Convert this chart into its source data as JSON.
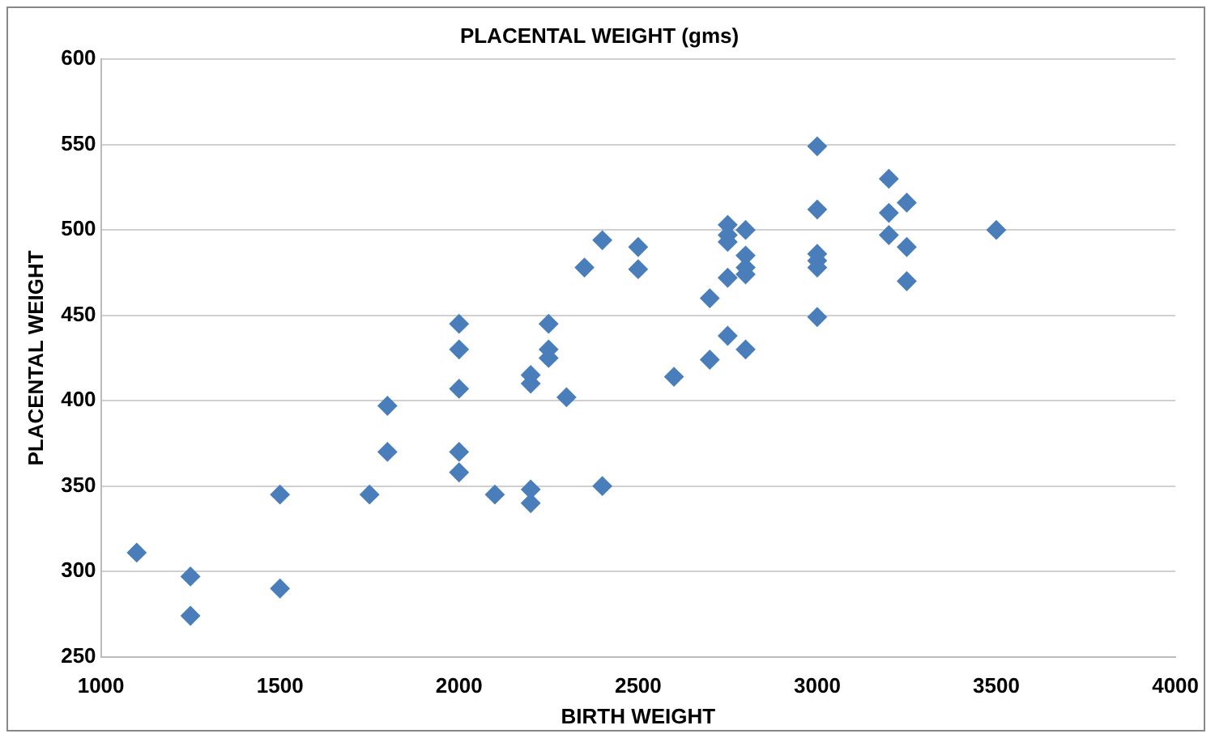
{
  "chart_data": {
    "type": "scatter",
    "title": "PLACENTAL WEIGHT (gms)",
    "xlabel": "BIRTH WEIGHT",
    "ylabel": "PLACENTAL WEIGHT",
    "x": [
      1100,
      1250,
      1250,
      1500,
      1500,
      1750,
      1800,
      1800,
      2000,
      2000,
      2000,
      2000,
      2000,
      2100,
      2200,
      2200,
      2200,
      2200,
      2250,
      2250,
      2250,
      2300,
      2350,
      2400,
      2400,
      2500,
      2500,
      2600,
      2700,
      2700,
      2750,
      2750,
      2750,
      2750,
      2750,
      2800,
      2800,
      2800,
      2800,
      2800,
      3000,
      3000,
      3000,
      3000,
      3000,
      3000,
      3200,
      3200,
      3200,
      3250,
      3250,
      3250,
      3500
    ],
    "values": [
      311,
      297,
      274,
      345,
      290,
      345,
      397,
      370,
      445,
      430,
      407,
      370,
      358,
      345,
      415,
      410,
      348,
      340,
      445,
      430,
      425,
      402,
      478,
      494,
      350,
      490,
      477,
      414,
      460,
      424,
      503,
      497,
      493,
      472,
      438,
      500,
      485,
      478,
      474,
      430,
      549,
      512,
      486,
      482,
      478,
      449,
      530,
      510,
      497,
      516,
      490,
      470,
      500
    ],
    "color": "#4a7ebb",
    "marker": "diamond",
    "xlim": [
      1000,
      4000
    ],
    "xticks": [
      1000,
      1500,
      2000,
      2500,
      3000,
      3500,
      4000
    ],
    "ylim": [
      250,
      600
    ],
    "yticks": [
      250,
      300,
      350,
      400,
      450,
      500,
      550,
      600
    ],
    "grid": "y",
    "legend": false
  }
}
